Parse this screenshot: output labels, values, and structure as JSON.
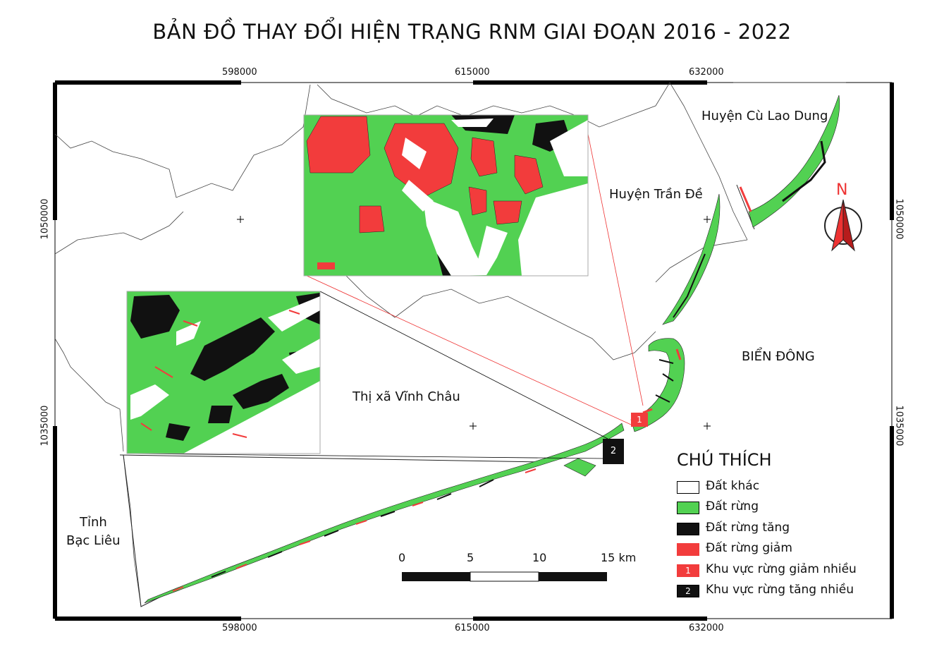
{
  "title": "BẢN ĐỒ THAY ĐỔI HIỆN TRẠNG RNM GIAI ĐOẠN 2016 - 2022",
  "coords": {
    "top": [
      "598000",
      "615000",
      "632000"
    ],
    "bottom": [
      "598000",
      "615000",
      "632000"
    ],
    "left": [
      "1050000",
      "1035000"
    ],
    "right": [
      "1050000",
      "1035000"
    ]
  },
  "places": {
    "cu_lao_dung": "Huyện Cù Lao Dung",
    "tran_de": "Huyện Trần Đề",
    "bien_dong": "BIỂN ĐÔNG",
    "vinh_chau": "Thị xã Vĩnh Châu",
    "bac_lieu_1": "Tỉnh",
    "bac_lieu_2": "Bạc Liêu"
  },
  "north": "N",
  "zone_badges": {
    "decrease": "1",
    "increase": "2"
  },
  "legend": {
    "title": "CHÚ THÍCH",
    "items": [
      {
        "label": "Đất khác",
        "color": "#ffffff",
        "badge": ""
      },
      {
        "label": "Đất rừng",
        "color": "#52d152",
        "badge": ""
      },
      {
        "label": "Đất rừng tăng",
        "color": "#111111",
        "badge": ""
      },
      {
        "label": "Đất rừng giảm",
        "color": "#f23c3c",
        "badge": ""
      },
      {
        "label": "Khu vực rừng giảm nhiều",
        "color": "#f23c3c",
        "badge": "1"
      },
      {
        "label": "Khu vực rừng tăng nhiều",
        "color": "#111111",
        "badge": "2"
      }
    ]
  },
  "scale_bar": {
    "labels": [
      "0",
      "5",
      "10",
      "15 km"
    ]
  },
  "colors": {
    "forest": "#52d152",
    "increase": "#111111",
    "decrease": "#f23c3c"
  }
}
